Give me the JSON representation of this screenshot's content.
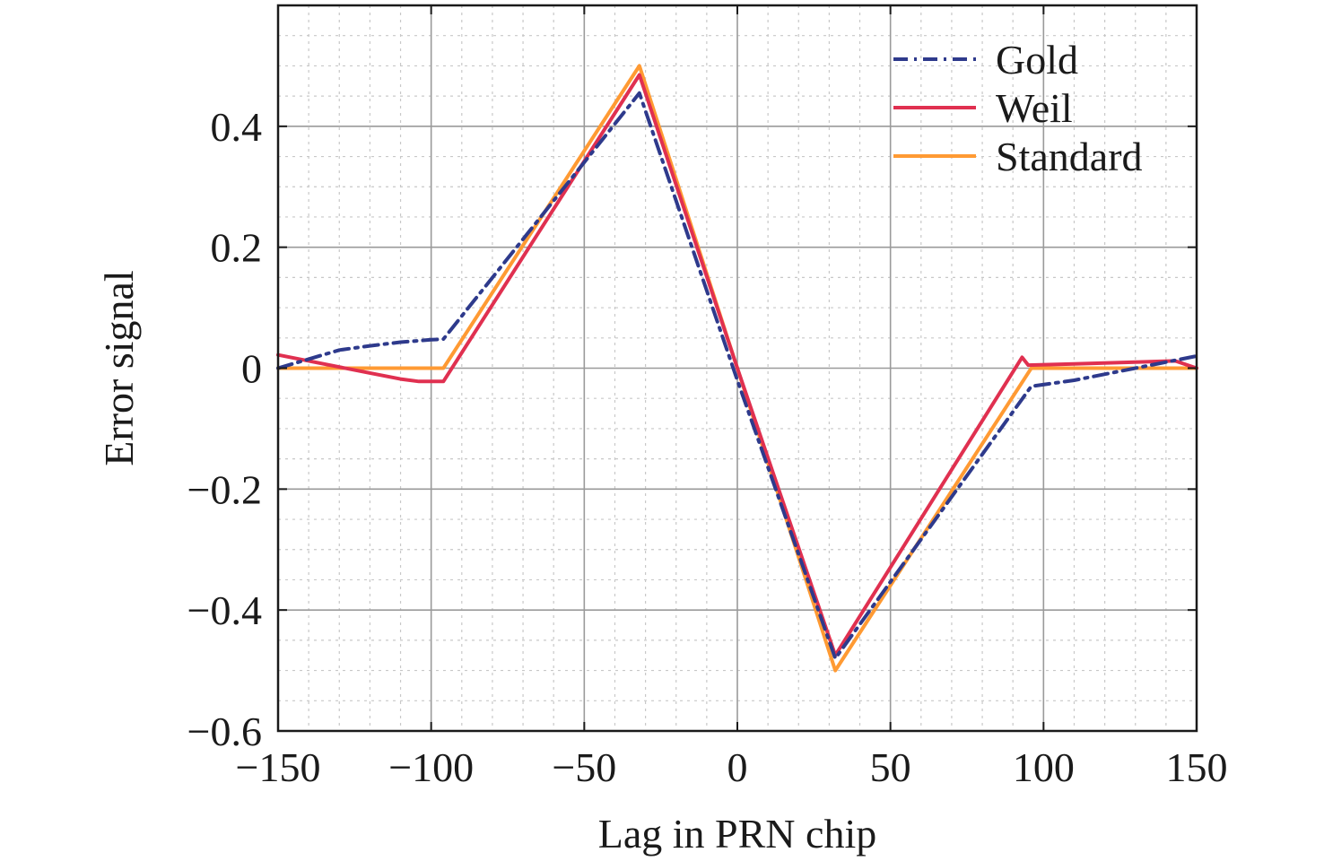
{
  "chart_data": {
    "type": "line",
    "title": "",
    "xlabel": "Lag in PRN chip",
    "ylabel": "Error signal",
    "xlim": [
      -150,
      150
    ],
    "ylim": [
      -0.6,
      0.6
    ],
    "xticks": [
      -150,
      -100,
      -50,
      0,
      50,
      100,
      150
    ],
    "xtick_labels": [
      "−150",
      "−100",
      "−50",
      "0",
      "50",
      "100",
      "150"
    ],
    "yticks": [
      -0.6,
      -0.4,
      -0.2,
      0,
      0.2,
      0.4
    ],
    "ytick_labels": [
      "−0.6",
      "−0.4",
      "−0.2",
      "0",
      "0.2",
      "0.4"
    ],
    "grid": true,
    "minor_grid": true,
    "legend_position": "top-right",
    "series": [
      {
        "name": "Gold",
        "color": "#2e3a8c",
        "style": "dashdot",
        "x": [
          -150,
          -140,
          -130,
          -120,
          -110,
          -100,
          -96,
          -32,
          0,
          32,
          96,
          110,
          130,
          150
        ],
        "y": [
          0.0,
          0.015,
          0.03,
          0.037,
          0.043,
          0.047,
          0.048,
          0.455,
          -0.02,
          -0.48,
          -0.03,
          -0.02,
          0.0,
          0.02
        ]
      },
      {
        "name": "Weil",
        "color": "#e03050",
        "style": "solid",
        "x": [
          -150,
          -140,
          -130,
          -120,
          -110,
          -104,
          -96,
          -32,
          0,
          32,
          93,
          95,
          110,
          130,
          143,
          150
        ],
        "y": [
          0.022,
          0.012,
          0.002,
          -0.008,
          -0.018,
          -0.022,
          -0.022,
          0.485,
          0.0,
          -0.475,
          0.018,
          0.005,
          0.007,
          0.01,
          0.012,
          0.0
        ]
      },
      {
        "name": "Standard",
        "color": "#ff9a33",
        "style": "solid",
        "x": [
          -150,
          -96,
          -32,
          32,
          96,
          150
        ],
        "y": [
          0.0,
          0.0,
          0.5,
          -0.5,
          0.0,
          0.0
        ]
      }
    ]
  }
}
